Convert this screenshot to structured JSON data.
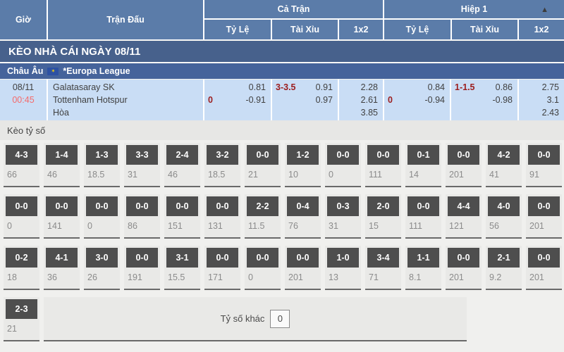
{
  "colors": {
    "header_blue": "#5b7ca9",
    "banner_blue": "#47618c",
    "league_blue": "#45639b",
    "row_blue": "#c9ddf5",
    "handicap_maroon": "#9c1d1d",
    "time_red": "#f56a6a",
    "tile_gray": "#4e4e4e",
    "section_gray": "#f0f0ee"
  },
  "header": {
    "time": "Giờ",
    "match": "Trận Đấu",
    "full_match": "Cả Trận",
    "first_half": "Hiệp 1",
    "sub": {
      "handicap": "Tỷ Lệ",
      "over_under": "Tài Xỉu",
      "one_x_two": "1x2"
    }
  },
  "banner": {
    "title": "KÈO NHÀ CÁI NGÀY 08/11"
  },
  "league": {
    "region": "Châu Âu",
    "name": "*Europa League",
    "flag_icon": "eu-flag-icon",
    "flag_glyph": "✶"
  },
  "match": {
    "date": "08/11",
    "time": "00:45",
    "home": "Galatasaray SK",
    "away": "Tottenham Hotspur",
    "draw": "Hòa",
    "full": {
      "handicap": {
        "line": "0",
        "home_odds": "0.81",
        "away_odds": "-0.91"
      },
      "over_under": {
        "line": "3-3.5",
        "over_odds": "0.91",
        "under_odds": "0.97"
      },
      "one_x_two": [
        "2.28",
        "2.61",
        "3.85"
      ]
    },
    "half": {
      "handicap": {
        "line": "0",
        "home_odds": "0.84",
        "away_odds": "-0.94"
      },
      "over_under": {
        "line": "1-1.5",
        "over_odds": "0.86",
        "under_odds": "-0.98"
      },
      "one_x_two": [
        "2.75",
        "3.1",
        "2.43"
      ]
    }
  },
  "score_section": {
    "title": "Kèo tỷ số",
    "collapse_icon": "▲",
    "rows": [
      [
        {
          "score": "4-3",
          "odds": "66"
        },
        {
          "score": "1-4",
          "odds": "46"
        },
        {
          "score": "1-3",
          "odds": "18.5"
        },
        {
          "score": "3-3",
          "odds": "31"
        },
        {
          "score": "2-4",
          "odds": "46"
        },
        {
          "score": "3-2",
          "odds": "18.5"
        },
        {
          "score": "0-0",
          "odds": "21"
        },
        {
          "score": "1-2",
          "odds": "10"
        },
        {
          "score": "0-0",
          "odds": "0"
        },
        {
          "score": "0-0",
          "odds": "111"
        },
        {
          "score": "0-1",
          "odds": "14"
        },
        {
          "score": "0-0",
          "odds": "201"
        },
        {
          "score": "4-2",
          "odds": "41"
        },
        {
          "score": "0-0",
          "odds": "91"
        }
      ],
      [
        {
          "score": "0-0",
          "odds": "0"
        },
        {
          "score": "0-0",
          "odds": "141"
        },
        {
          "score": "0-0",
          "odds": "0"
        },
        {
          "score": "0-0",
          "odds": "86"
        },
        {
          "score": "0-0",
          "odds": "151"
        },
        {
          "score": "0-0",
          "odds": "131"
        },
        {
          "score": "2-2",
          "odds": "11.5"
        },
        {
          "score": "0-4",
          "odds": "76"
        },
        {
          "score": "0-3",
          "odds": "31"
        },
        {
          "score": "2-0",
          "odds": "15"
        },
        {
          "score": "0-0",
          "odds": "111"
        },
        {
          "score": "4-4",
          "odds": "121"
        },
        {
          "score": "4-0",
          "odds": "56"
        },
        {
          "score": "0-0",
          "odds": "201"
        }
      ],
      [
        {
          "score": "0-2",
          "odds": "18"
        },
        {
          "score": "4-1",
          "odds": "36"
        },
        {
          "score": "3-0",
          "odds": "26"
        },
        {
          "score": "0-0",
          "odds": "191"
        },
        {
          "score": "3-1",
          "odds": "15.5"
        },
        {
          "score": "0-0",
          "odds": "171"
        },
        {
          "score": "0-0",
          "odds": "0"
        },
        {
          "score": "0-0",
          "odds": "201"
        },
        {
          "score": "1-0",
          "odds": "13"
        },
        {
          "score": "3-4",
          "odds": "71"
        },
        {
          "score": "1-1",
          "odds": "8.1"
        },
        {
          "score": "0-0",
          "odds": "201"
        },
        {
          "score": "2-1",
          "odds": "9.2"
        },
        {
          "score": "0-0",
          "odds": "201"
        }
      ],
      [
        {
          "score": "2-3",
          "odds": "21"
        }
      ]
    ],
    "other_score": {
      "label": "Tỷ số khác",
      "value": "0"
    }
  }
}
